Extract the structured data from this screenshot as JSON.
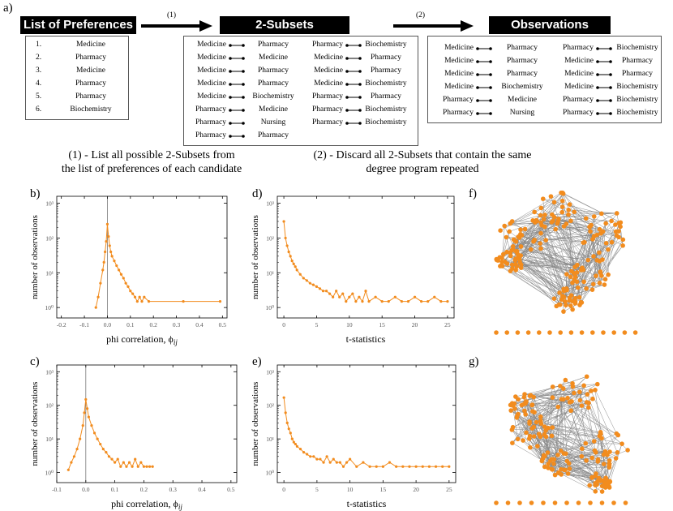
{
  "panel_a": {
    "letter": "a)",
    "list_header": "List of Preferences",
    "subsets_header": "2-Subsets",
    "observations_header": "Observations",
    "step1_label": "(1)",
    "step2_label": "(2)",
    "preferences": [
      {
        "num": "1.",
        "name": "Medicine"
      },
      {
        "num": "2.",
        "name": "Pharmacy"
      },
      {
        "num": "3.",
        "name": "Medicine"
      },
      {
        "num": "4.",
        "name": "Pharmacy"
      },
      {
        "num": "5.",
        "name": "Pharmacy"
      },
      {
        "num": "6.",
        "name": "Biochemistry"
      }
    ],
    "subsets_left": [
      [
        "Medicine",
        "Pharmacy"
      ],
      [
        "Medicine",
        "Medicine"
      ],
      [
        "Medicine",
        "Pharmacy"
      ],
      [
        "Medicine",
        "Pharmacy"
      ],
      [
        "Medicine",
        "Biochemistry"
      ],
      [
        "Pharmacy",
        "Medicine"
      ],
      [
        "Pharmacy",
        "Nursing"
      ],
      [
        "Pharmacy",
        "Pharmacy"
      ]
    ],
    "subsets_right": [
      [
        "Pharmacy",
        "Biochemistry"
      ],
      [
        "Medicine",
        "Pharmacy"
      ],
      [
        "Medicine",
        "Pharmacy"
      ],
      [
        "Medicine",
        "Biochemistry"
      ],
      [
        "Pharmacy",
        "Pharmacy"
      ],
      [
        "Pharmacy",
        "Biochemistry"
      ],
      [
        "Pharmacy",
        "Biochemistry"
      ]
    ],
    "observations_left": [
      [
        "Medicine",
        "Pharmacy"
      ],
      [
        "Medicine",
        "Pharmacy"
      ],
      [
        "Medicine",
        "Pharmacy"
      ],
      [
        "Medicine",
        "Biochemistry"
      ],
      [
        "Pharmacy",
        "Medicine"
      ],
      [
        "Pharmacy",
        "Nursing"
      ]
    ],
    "observations_right": [
      [
        "Pharmacy",
        "Biochemistry"
      ],
      [
        "Medicine",
        "Pharmacy"
      ],
      [
        "Medicine",
        "Pharmacy"
      ],
      [
        "Medicine",
        "Biochemistry"
      ],
      [
        "Pharmacy",
        "Biochemistry"
      ],
      [
        "Pharmacy",
        "Biochemistry"
      ]
    ],
    "caption1_line1": "(1) - List all possible 2-Subsets from",
    "caption1_line2": "the list of preferences of each candidate",
    "caption2_line1": "(2) - Discard all 2-Subsets that contain the same",
    "caption2_line2": "degree program repeated"
  },
  "letters": {
    "b": "b)",
    "c": "c)",
    "d": "d)",
    "e": "e)",
    "f": "f)",
    "g": "g)"
  },
  "colors": {
    "accent": "#f28c1e",
    "edge": "#8a8a8a",
    "axis": "#000000"
  },
  "chart_data": [
    {
      "id": "b",
      "type": "line",
      "scale": "log",
      "xlabel": "phi correlation, ",
      "xlabel_symbol": "ϕ",
      "xlabel_sub": "ij",
      "ylabel": "number of observations",
      "xlim": [
        -0.22,
        0.52
      ],
      "xticks": [
        -0.2,
        -0.1,
        0.0,
        0.1,
        0.2,
        0.3,
        0.4,
        0.5
      ],
      "xtick_labels": [
        "-0.2",
        "-0.1",
        "0.0",
        "0.1",
        "0.2",
        "0.3",
        "0.4",
        "0.5"
      ],
      "ylim_exp": [
        -0.3,
        3.2
      ],
      "yticks": [
        0,
        1,
        2,
        3
      ],
      "ytick_labels": [
        "10⁰",
        "10¹",
        "10²",
        "10³"
      ],
      "vline": 0.0,
      "x": [
        -0.05,
        -0.04,
        -0.03,
        -0.02,
        -0.015,
        -0.01,
        -0.005,
        0.0,
        0.005,
        0.01,
        0.015,
        0.02,
        0.03,
        0.04,
        0.05,
        0.06,
        0.07,
        0.08,
        0.09,
        0.1,
        0.11,
        0.12,
        0.13,
        0.14,
        0.15,
        0.16,
        0.18,
        0.33,
        0.49
      ],
      "y": [
        1.0,
        2.0,
        5.0,
        12.0,
        20.0,
        40.0,
        80.0,
        250.0,
        110.0,
        60.0,
        40.0,
        30.0,
        22.0,
        16.0,
        12.0,
        9.0,
        7.0,
        5.0,
        4.0,
        3.0,
        2.5,
        2.0,
        1.5,
        2.0,
        1.5,
        2.0,
        1.5,
        1.5,
        1.5
      ]
    },
    {
      "id": "c",
      "type": "line",
      "scale": "log",
      "xlabel": "phi correlation, ",
      "xlabel_symbol": "ϕ",
      "xlabel_sub": "ij",
      "ylabel": "number of observations",
      "xlim": [
        -0.1,
        0.52
      ],
      "xticks": [
        -0.1,
        0.0,
        0.1,
        0.2,
        0.3,
        0.4,
        0.5
      ],
      "xtick_labels": [
        "-0.1",
        "0.0",
        "0.1",
        "0.2",
        "0.3",
        "0.4",
        "0.5"
      ],
      "ylim_exp": [
        -0.3,
        3.2
      ],
      "yticks": [
        0,
        1,
        2,
        3
      ],
      "ytick_labels": [
        "10⁰",
        "10¹",
        "10²",
        "10³"
      ],
      "vline": 0.0,
      "x": [
        -0.06,
        -0.05,
        -0.04,
        -0.03,
        -0.02,
        -0.01,
        -0.005,
        0.0,
        0.005,
        0.01,
        0.02,
        0.03,
        0.04,
        0.05,
        0.06,
        0.07,
        0.08,
        0.09,
        0.1,
        0.11,
        0.12,
        0.13,
        0.14,
        0.15,
        0.16,
        0.17,
        0.18,
        0.19,
        0.2,
        0.21,
        0.22,
        0.23
      ],
      "y": [
        1.2,
        2.0,
        3.0,
        5.0,
        10.0,
        25.0,
        60.0,
        150.0,
        80.0,
        45.0,
        25.0,
        15.0,
        10.0,
        7.0,
        5.0,
        4.0,
        3.0,
        2.5,
        2.0,
        2.5,
        1.5,
        2.0,
        1.5,
        2.0,
        1.5,
        2.5,
        1.5,
        2.0,
        1.5,
        1.5,
        1.5,
        1.5
      ]
    },
    {
      "id": "d",
      "type": "line",
      "scale": "log",
      "xlabel": "t-statistics",
      "ylabel": "number of observations",
      "xlim": [
        -1,
        26
      ],
      "xticks": [
        0,
        5,
        10,
        15,
        20,
        25
      ],
      "xtick_labels": [
        "0",
        "5",
        "10",
        "15",
        "20",
        "25"
      ],
      "ylim_exp": [
        -0.3,
        3.2
      ],
      "yticks": [
        0,
        1,
        2,
        3
      ],
      "ytick_labels": [
        "10⁰",
        "10¹",
        "10²",
        "10³"
      ],
      "x": [
        0,
        0.25,
        0.5,
        0.75,
        1,
        1.25,
        1.5,
        1.75,
        2,
        2.5,
        3,
        3.5,
        4,
        4.5,
        5,
        5.5,
        6,
        6.5,
        7,
        7.5,
        8,
        8.5,
        9,
        9.5,
        10,
        10.5,
        11,
        11.5,
        12,
        12.5,
        13,
        14,
        15,
        16,
        17,
        18,
        19,
        20,
        21,
        22,
        23,
        24,
        25
      ],
      "y": [
        300,
        100,
        60,
        40,
        30,
        22,
        18,
        15,
        12,
        9,
        7,
        6,
        5,
        4.5,
        4,
        3.5,
        3,
        3,
        2.5,
        2,
        3,
        2,
        2.5,
        1.5,
        2,
        2.5,
        1.5,
        2,
        1.5,
        3,
        1.5,
        2,
        1.5,
        1.5,
        2,
        1.5,
        1.5,
        2,
        1.5,
        1.5,
        2,
        1.5,
        1.5
      ]
    },
    {
      "id": "e",
      "type": "line",
      "scale": "log",
      "xlabel": "t-statistics",
      "ylabel": "number of observations",
      "xlim": [
        -1,
        26
      ],
      "xticks": [
        0,
        5,
        10,
        15,
        20,
        25
      ],
      "xtick_labels": [
        "0",
        "5",
        "10",
        "15",
        "20",
        "25"
      ],
      "ylim_exp": [
        -0.3,
        3.2
      ],
      "yticks": [
        0,
        1,
        2,
        3
      ],
      "ytick_labels": [
        "10⁰",
        "10¹",
        "10²",
        "10³"
      ],
      "x": [
        0,
        0.25,
        0.5,
        0.75,
        1,
        1.25,
        1.5,
        1.75,
        2,
        2.5,
        3,
        3.5,
        4,
        4.5,
        5,
        5.5,
        6,
        6.5,
        7,
        7.5,
        8,
        8.5,
        9,
        9.5,
        10,
        11,
        12,
        13,
        14,
        15,
        16,
        17,
        18,
        19,
        20,
        21,
        22,
        23,
        24,
        25
      ],
      "y": [
        170,
        60,
        30,
        20,
        15,
        10,
        8,
        7,
        6,
        5,
        4,
        3.5,
        3,
        3,
        2.5,
        2.5,
        2,
        3,
        2,
        2.5,
        2,
        2,
        1.5,
        2,
        2.5,
        1.5,
        2,
        1.5,
        1.5,
        1.5,
        2,
        1.5,
        1.5,
        1.5,
        1.5,
        1.5,
        1.5,
        1.5,
        1.5,
        1.5
      ]
    }
  ]
}
